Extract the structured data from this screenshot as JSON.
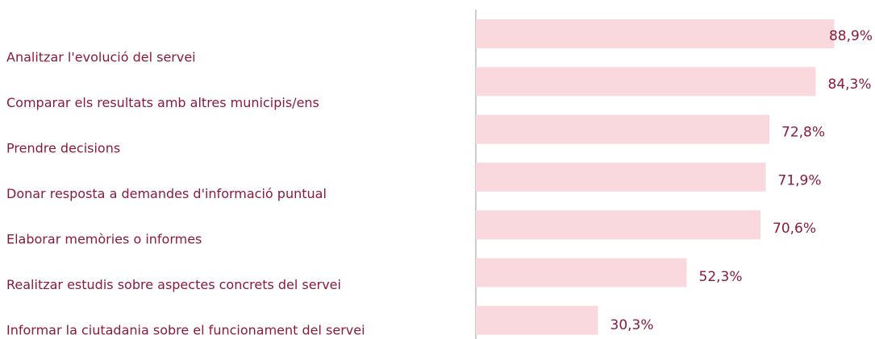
{
  "chart_data": {
    "type": "hbar",
    "categories": [
      "Analitzar l'evolució del servei",
      "Comparar els resultats amb altres municipis/ens",
      "Prendre decisions",
      "Donar resposta a demandes d'informació puntual",
      "Elaborar memòries o informes",
      "Realitzar estudis sobre aspectes concrets del servei",
      "Informar la ciutadania sobre el funcionament del servei"
    ],
    "values": [
      88.9,
      84.3,
      72.8,
      71.9,
      70.6,
      52.3,
      30.3
    ],
    "value_labels": [
      "88,9%",
      "84,3%",
      "72,8%",
      "71,9%",
      "70,6%",
      "52,3%",
      "30,3%"
    ],
    "color": "#f9d9de",
    "xlim": [
      0,
      100
    ]
  }
}
